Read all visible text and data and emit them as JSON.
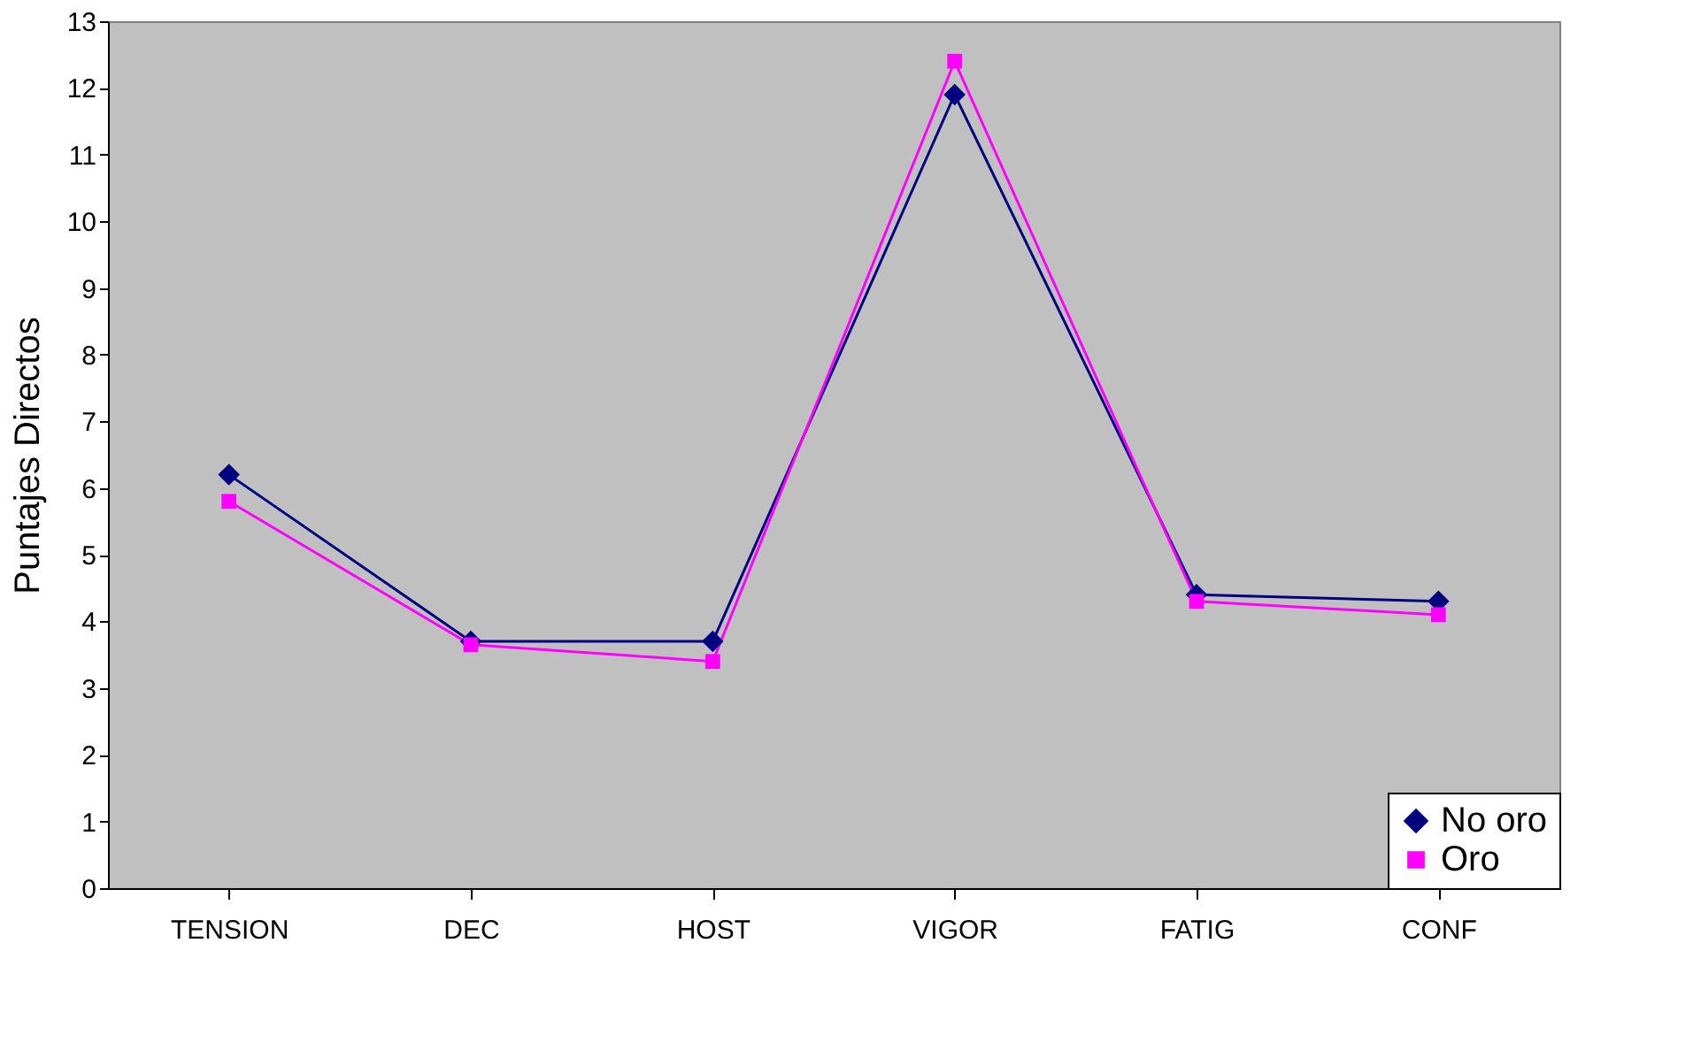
{
  "chart_data": {
    "type": "line",
    "ylabel": "Puntajes Directos",
    "categories": [
      "TENSION",
      "DEC",
      "HOST",
      "VIGOR",
      "FATIG",
      "CONF"
    ],
    "series": [
      {
        "name": "No oro",
        "color": "#000080",
        "marker": "diamond",
        "values": [
          6.2,
          3.7,
          3.7,
          11.9,
          4.4,
          4.3
        ]
      },
      {
        "name": "Oro",
        "color": "#ff00ff",
        "marker": "square",
        "values": [
          5.8,
          3.65,
          3.4,
          12.4,
          4.3,
          4.1
        ]
      }
    ],
    "ylim": [
      0,
      13
    ],
    "yticks": [
      0,
      1,
      2,
      3,
      4,
      5,
      6,
      7,
      8,
      9,
      10,
      11,
      12,
      13
    ],
    "grid": false,
    "legend": "bottom right",
    "line_style": "solid"
  }
}
